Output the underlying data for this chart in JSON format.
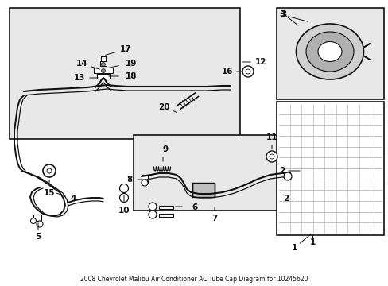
{
  "title": "2008 Chevrolet Malibu Air Conditioner AC Tube Cap Diagram for 10245620",
  "bg_color": "#f5f5f5",
  "white": "#ffffff",
  "black": "#111111",
  "dark": "#333333",
  "gray": "#aaaaaa",
  "light_gray": "#e0e0e0",
  "box_bg": "#e8e8e8",
  "figw": 4.89,
  "figh": 3.6,
  "dpi": 100
}
